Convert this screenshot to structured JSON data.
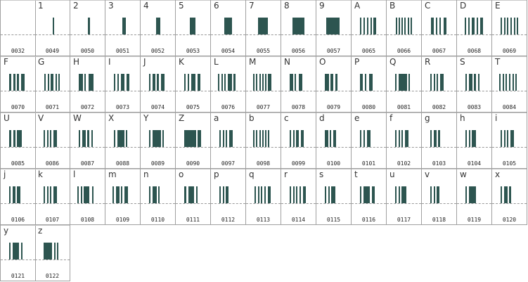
{
  "cells": [
    {
      "char": "",
      "code": "0032",
      "bars": []
    },
    {
      "char": "1",
      "code": "0049",
      "bars": [
        [
          0.5,
          0.04
        ]
      ]
    },
    {
      "char": "2",
      "code": "0050",
      "bars": [
        [
          0.5,
          0.06
        ]
      ]
    },
    {
      "char": "3",
      "code": "0051",
      "bars": [
        [
          0.48,
          0.1
        ]
      ]
    },
    {
      "char": "4",
      "code": "0052",
      "bars": [
        [
          0.44,
          0.14
        ]
      ]
    },
    {
      "char": "5",
      "code": "0053",
      "bars": [
        [
          0.4,
          0.18
        ]
      ]
    },
    {
      "char": "6",
      "code": "0054",
      "bars": [
        [
          0.36,
          0.24
        ]
      ]
    },
    {
      "char": "7",
      "code": "0055",
      "bars": [
        [
          0.33,
          0.3
        ]
      ]
    },
    {
      "char": "8",
      "code": "0056",
      "bars": [
        [
          0.3,
          0.36
        ]
      ]
    },
    {
      "char": "9",
      "code": "0057",
      "bars": [
        [
          0.26,
          0.42
        ]
      ]
    },
    {
      "char": "A",
      "code": "0065",
      "bars": [
        [
          0.22,
          0.05
        ],
        [
          0.33,
          0.05
        ],
        [
          0.44,
          0.05
        ],
        [
          0.55,
          0.05
        ],
        [
          0.64,
          0.08
        ]
      ]
    },
    {
      "char": "B",
      "code": "0066",
      "bars": [
        [
          0.24,
          0.04
        ],
        [
          0.33,
          0.04
        ],
        [
          0.42,
          0.04
        ],
        [
          0.51,
          0.04
        ],
        [
          0.6,
          0.04
        ],
        [
          0.69,
          0.04
        ]
      ]
    },
    {
      "char": "C",
      "code": "0067",
      "bars": [
        [
          0.24,
          0.08
        ],
        [
          0.4,
          0.05
        ],
        [
          0.51,
          0.05
        ],
        [
          0.62,
          0.08
        ]
      ]
    },
    {
      "char": "D",
      "code": "0068",
      "bars": [
        [
          0.2,
          0.05
        ],
        [
          0.3,
          0.05
        ],
        [
          0.41,
          0.09
        ],
        [
          0.57,
          0.05
        ],
        [
          0.67,
          0.08
        ]
      ]
    },
    {
      "char": "E",
      "code": "0069",
      "bars": [
        [
          0.22,
          0.05
        ],
        [
          0.32,
          0.05
        ],
        [
          0.42,
          0.05
        ],
        [
          0.52,
          0.05
        ],
        [
          0.62,
          0.05
        ],
        [
          0.71,
          0.05
        ]
      ]
    },
    {
      "char": "F",
      "code": "0070",
      "bars": [
        [
          0.22,
          0.06
        ],
        [
          0.34,
          0.06
        ],
        [
          0.46,
          0.06
        ],
        [
          0.58,
          0.1
        ]
      ]
    },
    {
      "char": "G",
      "code": "0071",
      "bars": [
        [
          0.24,
          0.04
        ],
        [
          0.35,
          0.04
        ],
        [
          0.44,
          0.08
        ],
        [
          0.58,
          0.04
        ],
        [
          0.67,
          0.04
        ]
      ]
    },
    {
      "char": "H",
      "code": "0072",
      "bars": [
        [
          0.22,
          0.12
        ],
        [
          0.4,
          0.04
        ],
        [
          0.52,
          0.16
        ]
      ]
    },
    {
      "char": "I",
      "code": "0073",
      "bars": [
        [
          0.22,
          0.05
        ],
        [
          0.32,
          0.05
        ],
        [
          0.44,
          0.1
        ],
        [
          0.6,
          0.08
        ]
      ]
    },
    {
      "char": "J",
      "code": "0074",
      "bars": [
        [
          0.22,
          0.05
        ],
        [
          0.32,
          0.08
        ],
        [
          0.46,
          0.06
        ],
        [
          0.58,
          0.1
        ]
      ]
    },
    {
      "char": "K",
      "code": "0075",
      "bars": [
        [
          0.22,
          0.05
        ],
        [
          0.33,
          0.05
        ],
        [
          0.44,
          0.12
        ],
        [
          0.62,
          0.08
        ]
      ]
    },
    {
      "char": "L",
      "code": "0076",
      "bars": [
        [
          0.18,
          0.05
        ],
        [
          0.28,
          0.05
        ],
        [
          0.38,
          0.05
        ],
        [
          0.48,
          0.12
        ],
        [
          0.66,
          0.06
        ]
      ]
    },
    {
      "char": "M",
      "code": "0077",
      "bars": [
        [
          0.18,
          0.05
        ],
        [
          0.27,
          0.05
        ],
        [
          0.36,
          0.05
        ],
        [
          0.45,
          0.05
        ],
        [
          0.54,
          0.05
        ],
        [
          0.63,
          0.1
        ]
      ]
    },
    {
      "char": "N",
      "code": "0078",
      "bars": [
        [
          0.22,
          0.1
        ],
        [
          0.38,
          0.05
        ],
        [
          0.5,
          0.1
        ]
      ]
    },
    {
      "char": "O",
      "code": "0079",
      "bars": [
        [
          0.22,
          0.12
        ],
        [
          0.4,
          0.08
        ],
        [
          0.54,
          0.06
        ]
      ]
    },
    {
      "char": "P",
      "code": "0080",
      "bars": [
        [
          0.22,
          0.08
        ],
        [
          0.38,
          0.05
        ],
        [
          0.5,
          0.1
        ]
      ]
    },
    {
      "char": "Q",
      "code": "0081",
      "bars": [
        [
          0.22,
          0.05
        ],
        [
          0.32,
          0.26
        ],
        [
          0.62,
          0.05
        ]
      ]
    },
    {
      "char": "R",
      "code": "0082",
      "bars": [
        [
          0.22,
          0.05
        ],
        [
          0.32,
          0.05
        ],
        [
          0.42,
          0.05
        ],
        [
          0.52,
          0.1
        ]
      ]
    },
    {
      "char": "S",
      "code": "0083",
      "bars": [
        [
          0.22,
          0.05
        ],
        [
          0.32,
          0.1
        ],
        [
          0.48,
          0.06
        ],
        [
          0.6,
          0.05
        ]
      ]
    },
    {
      "char": "T",
      "code": "0084",
      "bars": [
        [
          0.18,
          0.05
        ],
        [
          0.28,
          0.05
        ],
        [
          0.38,
          0.05
        ],
        [
          0.48,
          0.05
        ],
        [
          0.58,
          0.05
        ],
        [
          0.68,
          0.05
        ]
      ]
    },
    {
      "char": "U",
      "code": "0085",
      "bars": [
        [
          0.22,
          0.06
        ],
        [
          0.34,
          0.06
        ],
        [
          0.46,
          0.16
        ]
      ]
    },
    {
      "char": "V",
      "code": "0086",
      "bars": [
        [
          0.22,
          0.05
        ],
        [
          0.32,
          0.05
        ],
        [
          0.42,
          0.05
        ],
        [
          0.52,
          0.1
        ]
      ]
    },
    {
      "char": "W",
      "code": "0087",
      "bars": [
        [
          0.22,
          0.05
        ],
        [
          0.32,
          0.1
        ],
        [
          0.48,
          0.06
        ],
        [
          0.6,
          0.05
        ]
      ]
    },
    {
      "char": "X",
      "code": "0088",
      "bars": [
        [
          0.22,
          0.05
        ],
        [
          0.32,
          0.22
        ],
        [
          0.58,
          0.05
        ]
      ]
    },
    {
      "char": "Y",
      "code": "0089",
      "bars": [
        [
          0.22,
          0.05
        ],
        [
          0.32,
          0.26
        ],
        [
          0.62,
          0.05
        ]
      ]
    },
    {
      "char": "Z",
      "code": "0090",
      "bars": [
        [
          0.22,
          0.36
        ],
        [
          0.62,
          0.1
        ]
      ]
    },
    {
      "char": "a",
      "code": "0097",
      "bars": [
        [
          0.22,
          0.05
        ],
        [
          0.32,
          0.05
        ],
        [
          0.42,
          0.05
        ],
        [
          0.52,
          0.1
        ]
      ]
    },
    {
      "char": "b",
      "code": "0098",
      "bars": [
        [
          0.18,
          0.05
        ],
        [
          0.27,
          0.05
        ],
        [
          0.36,
          0.05
        ],
        [
          0.45,
          0.05
        ],
        [
          0.54,
          0.05
        ],
        [
          0.63,
          0.05
        ]
      ]
    },
    {
      "char": "c",
      "code": "0099",
      "bars": [
        [
          0.22,
          0.05
        ],
        [
          0.32,
          0.05
        ],
        [
          0.42,
          0.08
        ],
        [
          0.56,
          0.08
        ]
      ]
    },
    {
      "char": "d",
      "code": "0100",
      "bars": [
        [
          0.22,
          0.1
        ],
        [
          0.38,
          0.05
        ],
        [
          0.48,
          0.08
        ]
      ]
    },
    {
      "char": "e",
      "code": "0101",
      "bars": [
        [
          0.22,
          0.05
        ],
        [
          0.32,
          0.05
        ],
        [
          0.44,
          0.1
        ]
      ]
    },
    {
      "char": "f",
      "code": "0102",
      "bars": [
        [
          0.22,
          0.05
        ],
        [
          0.32,
          0.05
        ],
        [
          0.42,
          0.05
        ],
        [
          0.52,
          0.1
        ]
      ]
    },
    {
      "char": "g",
      "code": "0103",
      "bars": [
        [
          0.22,
          0.05
        ],
        [
          0.32,
          0.08
        ],
        [
          0.46,
          0.06
        ]
      ]
    },
    {
      "char": "h",
      "code": "0104",
      "bars": [
        [
          0.22,
          0.05
        ],
        [
          0.32,
          0.05
        ],
        [
          0.42,
          0.12
        ]
      ]
    },
    {
      "char": "i",
      "code": "0105",
      "bars": [
        [
          0.22,
          0.05
        ],
        [
          0.32,
          0.05
        ],
        [
          0.42,
          0.05
        ],
        [
          0.52,
          0.1
        ]
      ]
    },
    {
      "char": "j",
      "code": "0106",
      "bars": [
        [
          0.22,
          0.05
        ],
        [
          0.32,
          0.08
        ],
        [
          0.46,
          0.1
        ]
      ]
    },
    {
      "char": "k",
      "code": "0107",
      "bars": [
        [
          0.22,
          0.05
        ],
        [
          0.32,
          0.05
        ],
        [
          0.42,
          0.05
        ],
        [
          0.52,
          0.1
        ]
      ]
    },
    {
      "char": "l",
      "code": "0108",
      "bars": [
        [
          0.18,
          0.05
        ],
        [
          0.28,
          0.05
        ],
        [
          0.38,
          0.18
        ],
        [
          0.62,
          0.05
        ]
      ]
    },
    {
      "char": "m",
      "code": "0109",
      "bars": [
        [
          0.18,
          0.05
        ],
        [
          0.28,
          0.1
        ],
        [
          0.44,
          0.05
        ],
        [
          0.54,
          0.1
        ]
      ]
    },
    {
      "char": "n",
      "code": "0110",
      "bars": [
        [
          0.22,
          0.05
        ],
        [
          0.32,
          0.12
        ],
        [
          0.5,
          0.05
        ]
      ]
    },
    {
      "char": "o",
      "code": "0111",
      "bars": [
        [
          0.22,
          0.06
        ],
        [
          0.34,
          0.18
        ],
        [
          0.58,
          0.05
        ]
      ]
    },
    {
      "char": "p",
      "code": "0112",
      "bars": [
        [
          0.22,
          0.05
        ],
        [
          0.32,
          0.05
        ],
        [
          0.42,
          0.08
        ]
      ]
    },
    {
      "char": "q",
      "code": "0113",
      "bars": [
        [
          0.22,
          0.05
        ],
        [
          0.32,
          0.05
        ],
        [
          0.42,
          0.05
        ],
        [
          0.52,
          0.05
        ],
        [
          0.62,
          0.08
        ]
      ]
    },
    {
      "char": "r",
      "code": "0114",
      "bars": [
        [
          0.22,
          0.05
        ],
        [
          0.32,
          0.05
        ],
        [
          0.42,
          0.05
        ],
        [
          0.52,
          0.05
        ],
        [
          0.62,
          0.08
        ]
      ]
    },
    {
      "char": "s",
      "code": "0115",
      "bars": [
        [
          0.22,
          0.05
        ],
        [
          0.32,
          0.05
        ],
        [
          0.42,
          0.14
        ]
      ]
    },
    {
      "char": "t",
      "code": "0116",
      "bars": [
        [
          0.22,
          0.05
        ],
        [
          0.32,
          0.2
        ],
        [
          0.58,
          0.08
        ]
      ]
    },
    {
      "char": "u",
      "code": "0117",
      "bars": [
        [
          0.22,
          0.05
        ],
        [
          0.32,
          0.05
        ],
        [
          0.42,
          0.16
        ]
      ]
    },
    {
      "char": "v",
      "code": "0118",
      "bars": [
        [
          0.22,
          0.05
        ],
        [
          0.32,
          0.05
        ],
        [
          0.42,
          0.08
        ]
      ]
    },
    {
      "char": "w",
      "code": "0119",
      "bars": [
        [
          0.22,
          0.05
        ],
        [
          0.32,
          0.22
        ]
      ]
    },
    {
      "char": "x",
      "code": "0120",
      "bars": [
        [
          0.22,
          0.05
        ],
        [
          0.32,
          0.1
        ],
        [
          0.48,
          0.06
        ]
      ]
    },
    {
      "char": "y",
      "code": "0121",
      "bars": [
        [
          0.22,
          0.05
        ],
        [
          0.32,
          0.2
        ],
        [
          0.58,
          0.05
        ]
      ]
    },
    {
      "char": "z",
      "code": "0122",
      "bars": [
        [
          0.22,
          0.26
        ],
        [
          0.54,
          0.05
        ],
        [
          0.64,
          0.05
        ]
      ]
    }
  ]
}
